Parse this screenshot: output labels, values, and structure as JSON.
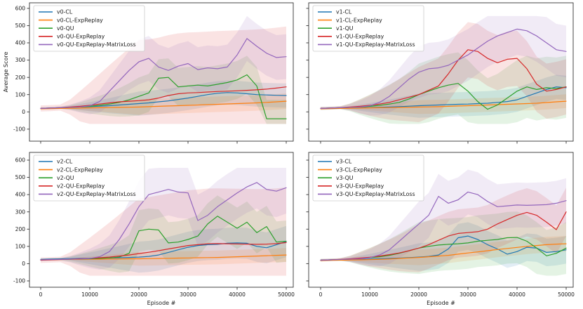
{
  "figure": {
    "background": "#ffffff",
    "xlabel": "Episode #",
    "ylabel": "Average Score"
  },
  "colors": {
    "blue": "#1f77b4",
    "orange": "#ff7f0e",
    "green": "#2ca02c",
    "red": "#d62728",
    "purple": "#9467bd",
    "spine": "#333333",
    "legend_border": "#cccccc"
  },
  "chart_data": [
    {
      "type": "line",
      "position": "top-left",
      "variant": "v0",
      "ylabel": "Average Score",
      "xlabel": "",
      "x": {
        "start": 0,
        "step": 2000,
        "end": 50000
      },
      "xticks": [
        0,
        10000,
        20000,
        30000,
        40000,
        50000
      ],
      "yticks": [
        -100,
        0,
        100,
        200,
        300,
        400,
        500,
        600
      ],
      "ylim": [
        -170,
        640
      ],
      "xlim": [
        -2300,
        51500
      ],
      "legend_position": "upper left",
      "grid": false,
      "series": [
        {
          "name": "v0-CL",
          "color": "#1f77b4",
          "band": 70,
          "values": [
            20,
            22,
            24,
            26,
            28,
            30,
            33,
            36,
            40,
            44,
            48,
            52,
            58,
            64,
            72,
            80,
            90,
            100,
            108,
            112,
            110,
            105,
            100,
            98,
            96,
            95
          ]
        },
        {
          "name": "v0-CL-ExpReplay",
          "color": "#ff7f0e",
          "band": 45,
          "values": [
            18,
            19,
            20,
            21,
            22,
            23,
            24,
            25,
            26,
            27,
            28,
            30,
            32,
            34,
            36,
            38,
            40,
            42,
            44,
            46,
            48,
            50,
            52,
            55,
            58,
            62
          ]
        },
        {
          "name": "v0-QU",
          "color": "#2ca02c",
          "band": 110,
          "values": [
            20,
            22,
            24,
            26,
            28,
            32,
            38,
            45,
            55,
            70,
            90,
            110,
            195,
            200,
            145,
            150,
            155,
            150,
            160,
            170,
            185,
            215,
            150,
            -40,
            -40,
            -40
          ]
        },
        {
          "name": "v0-QU-ExpReplay",
          "color": "#d62728",
          "band": 350,
          "values": [
            20,
            22,
            25,
            28,
            32,
            38,
            45,
            52,
            58,
            62,
            65,
            70,
            80,
            95,
            105,
            110,
            112,
            115,
            118,
            120,
            122,
            125,
            128,
            132,
            138,
            145
          ]
        },
        {
          "name": "v0-QU-ExpReplay-MatrixLoss",
          "color": "#9467bd",
          "band": 130,
          "values": [
            20,
            22,
            24,
            26,
            28,
            35,
            60,
            120,
            180,
            240,
            290,
            310,
            260,
            240,
            265,
            280,
            245,
            255,
            250,
            260,
            330,
            425,
            380,
            340,
            315,
            320
          ]
        }
      ]
    },
    {
      "type": "line",
      "position": "top-right",
      "variant": "v1",
      "ylabel": "",
      "xlabel": "",
      "x": {
        "start": 0,
        "step": 2000,
        "end": 50000
      },
      "xticks": [
        0,
        10000,
        20000,
        30000,
        40000,
        50000
      ],
      "yticks": [
        -100,
        0,
        100,
        200,
        300,
        400,
        500,
        600
      ],
      "ylim": [
        -170,
        640
      ],
      "xlim": [
        -2300,
        51500
      ],
      "legend_position": "upper left",
      "grid": false,
      "series": [
        {
          "name": "v1-CL",
          "color": "#1f77b4",
          "band": 70,
          "values": [
            20,
            21,
            22,
            23,
            24,
            25,
            26,
            28,
            30,
            33,
            36,
            38,
            40,
            42,
            44,
            45,
            48,
            50,
            55,
            60,
            70,
            90,
            110,
            130,
            145,
            140
          ]
        },
        {
          "name": "v1-CL-ExpReplay",
          "color": "#ff7f0e",
          "band": 40,
          "values": [
            18,
            19,
            20,
            21,
            22,
            23,
            24,
            25,
            26,
            27,
            28,
            29,
            30,
            32,
            34,
            36,
            38,
            40,
            42,
            44,
            46,
            48,
            50,
            54,
            58,
            62
          ]
        },
        {
          "name": "v1-QU",
          "color": "#2ca02c",
          "band": 180,
          "values": [
            20,
            22,
            24,
            26,
            28,
            32,
            38,
            45,
            55,
            75,
            100,
            120,
            140,
            155,
            165,
            120,
            60,
            15,
            40,
            80,
            120,
            145,
            130,
            140,
            135,
            145
          ]
        },
        {
          "name": "v1-QU-ExpReplay",
          "color": "#d62728",
          "band": 160,
          "values": [
            20,
            22,
            25,
            28,
            32,
            38,
            45,
            55,
            70,
            85,
            100,
            125,
            150,
            220,
            300,
            360,
            350,
            310,
            285,
            305,
            310,
            250,
            160,
            120,
            130,
            145
          ]
        },
        {
          "name": "v1-QU-ExpReplay-MatrixLoss",
          "color": "#9467bd",
          "band": 150,
          "values": [
            20,
            22,
            24,
            26,
            28,
            35,
            55,
            90,
            140,
            190,
            230,
            250,
            255,
            270,
            300,
            330,
            370,
            410,
            440,
            460,
            480,
            470,
            440,
            400,
            360,
            350
          ]
        }
      ]
    },
    {
      "type": "line",
      "position": "bottom-left",
      "variant": "v2",
      "ylabel": "",
      "xlabel": "Episode #",
      "x": {
        "start": 0,
        "step": 2000,
        "end": 50000
      },
      "xticks": [
        0,
        10000,
        20000,
        30000,
        40000,
        50000
      ],
      "yticks": [
        -100,
        0,
        100,
        200,
        300,
        400,
        500,
        600
      ],
      "ylim": [
        -170,
        640
      ],
      "xlim": [
        -2300,
        51500
      ],
      "legend_position": "upper left",
      "grid": false,
      "series": [
        {
          "name": "v2-CL",
          "color": "#1f77b4",
          "band": 90,
          "values": [
            25,
            27,
            28,
            29,
            30,
            31,
            32,
            33,
            34,
            36,
            38,
            42,
            50,
            65,
            80,
            95,
            105,
            110,
            112,
            118,
            120,
            118,
            100,
            92,
            110,
            128
          ]
        },
        {
          "name": "v2-CL-ExpReplay",
          "color": "#ff7f0e",
          "band": 40,
          "values": [
            22,
            23,
            24,
            25,
            25,
            26,
            26,
            27,
            27,
            28,
            28,
            29,
            30,
            31,
            32,
            33,
            34,
            35,
            36,
            38,
            40,
            42,
            44,
            46,
            48,
            50
          ]
        },
        {
          "name": "v2-QU",
          "color": "#2ca02c",
          "band": 120,
          "values": [
            22,
            24,
            25,
            26,
            27,
            28,
            30,
            33,
            38,
            60,
            190,
            200,
            195,
            120,
            125,
            140,
            160,
            230,
            275,
            240,
            205,
            240,
            180,
            215,
            125,
            130
          ]
        },
        {
          "name": "v2-QU-ExpReplay",
          "color": "#d62728",
          "band": 320,
          "values": [
            20,
            22,
            24,
            26,
            28,
            30,
            34,
            38,
            44,
            50,
            58,
            66,
            75,
            85,
            95,
            105,
            110,
            115,
            116,
            115,
            114,
            113,
            112,
            113,
            116,
            122
          ]
        },
        {
          "name": "v2-QU-ExpReplay-MatrixLoss",
          "color": "#9467bd",
          "band": 150,
          "values": [
            22,
            24,
            25,
            26,
            27,
            30,
            40,
            70,
            140,
            230,
            330,
            400,
            415,
            430,
            415,
            410,
            250,
            280,
            330,
            370,
            410,
            445,
            470,
            430,
            420,
            440
          ]
        }
      ]
    },
    {
      "type": "line",
      "position": "bottom-right",
      "variant": "v3",
      "ylabel": "",
      "xlabel": "Episode #",
      "x": {
        "start": 0,
        "step": 2000,
        "end": 50000
      },
      "xticks": [
        0,
        10000,
        20000,
        30000,
        40000,
        50000
      ],
      "yticks": [
        -100,
        0,
        100,
        200,
        300,
        400,
        500,
        600
      ],
      "ylim": [
        -170,
        640
      ],
      "xlim": [
        -2300,
        51500
      ],
      "legend_position": "upper left",
      "grid": false,
      "series": [
        {
          "name": "v3-CL",
          "color": "#1f77b4",
          "band": 80,
          "values": [
            20,
            22,
            23,
            24,
            25,
            26,
            28,
            30,
            32,
            35,
            38,
            42,
            50,
            85,
            150,
            160,
            140,
            110,
            85,
            55,
            70,
            95,
            90,
            65,
            70,
            80
          ]
        },
        {
          "name": "v3-CL-ExpReplay",
          "color": "#ff7f0e",
          "band": 45,
          "values": [
            18,
            19,
            20,
            21,
            22,
            23,
            25,
            27,
            30,
            33,
            36,
            40,
            44,
            48,
            55,
            62,
            68,
            75,
            82,
            88,
            94,
            100,
            105,
            110,
            113,
            115
          ]
        },
        {
          "name": "v3-QU",
          "color": "#2ca02c",
          "band": 150,
          "values": [
            20,
            22,
            24,
            27,
            30,
            34,
            40,
            48,
            60,
            75,
            90,
            100,
            108,
            112,
            115,
            120,
            130,
            135,
            140,
            150,
            152,
            130,
            90,
            45,
            60,
            90
          ]
        },
        {
          "name": "v3-QU-ExpReplay",
          "color": "#d62728",
          "band": 140,
          "values": [
            20,
            22,
            25,
            28,
            32,
            37,
            44,
            52,
            62,
            75,
            90,
            110,
            135,
            160,
            175,
            180,
            185,
            200,
            230,
            255,
            280,
            297,
            280,
            240,
            197,
            300
          ]
        },
        {
          "name": "v3-QU-ExpReplay-MatrixLoss",
          "color": "#9467bd",
          "band": 130,
          "values": [
            20,
            22,
            24,
            26,
            28,
            34,
            50,
            80,
            130,
            180,
            230,
            280,
            390,
            350,
            370,
            415,
            400,
            360,
            330,
            335,
            340,
            338,
            340,
            342,
            350,
            365
          ]
        }
      ]
    }
  ]
}
